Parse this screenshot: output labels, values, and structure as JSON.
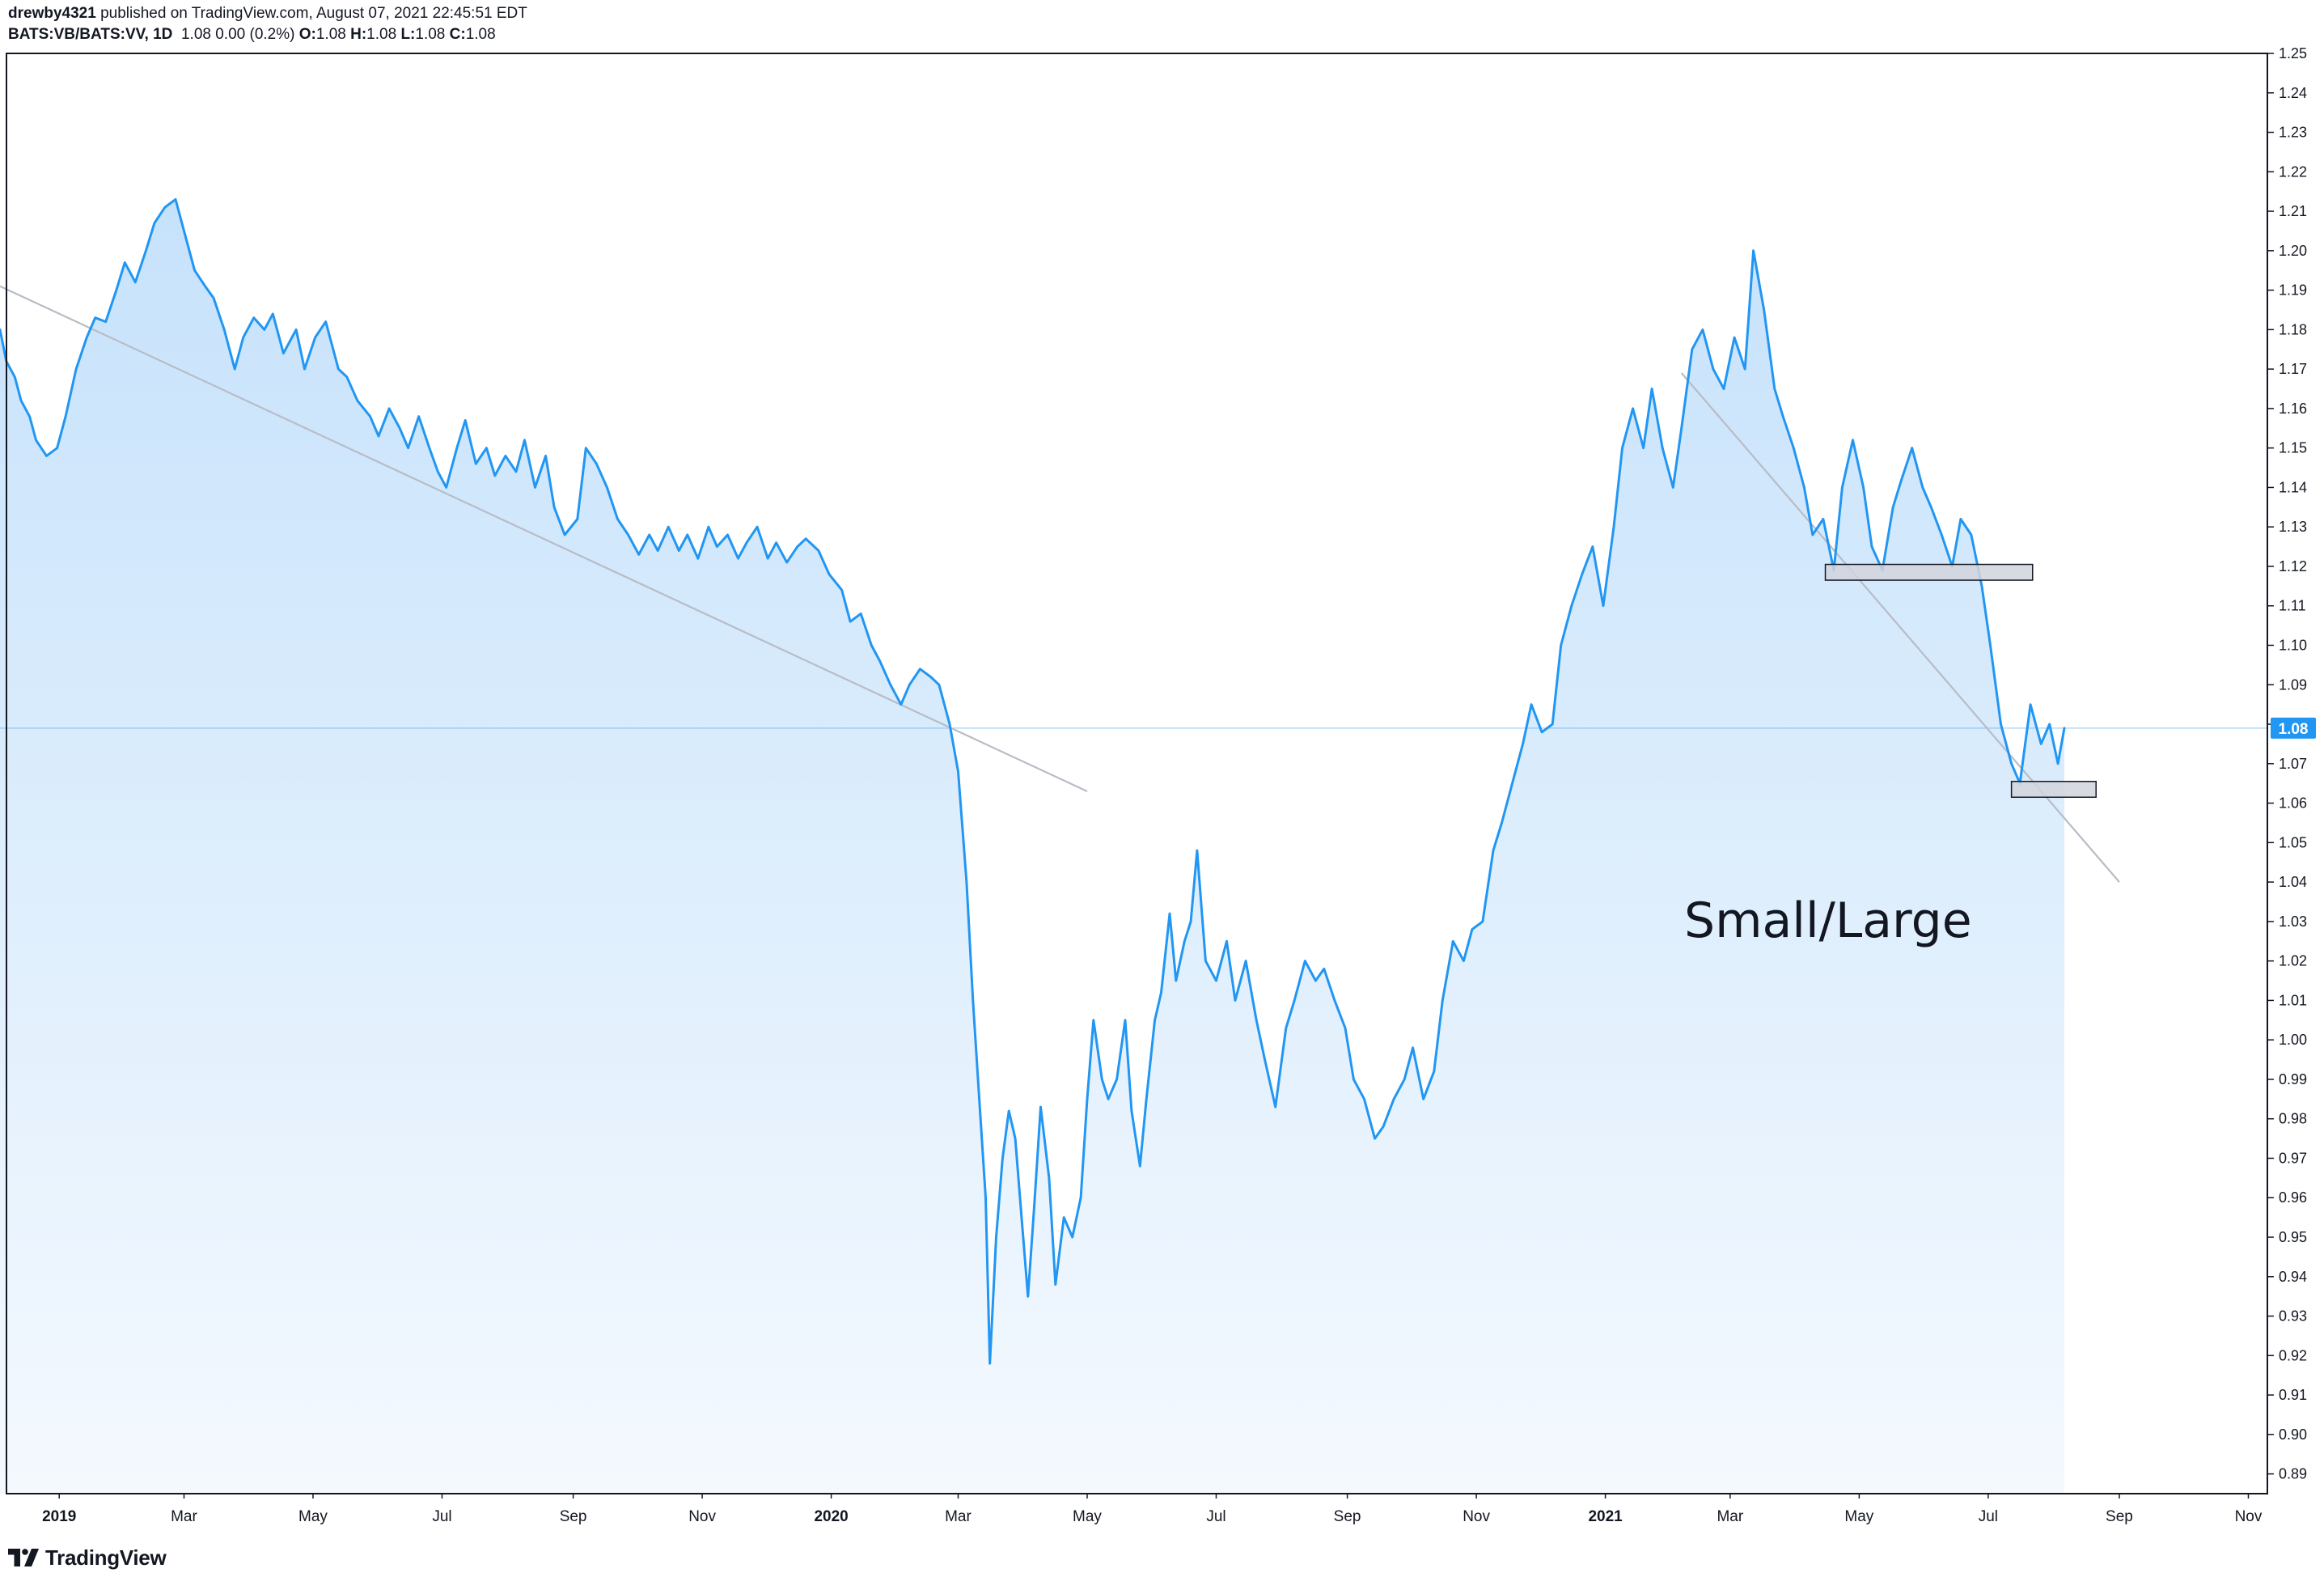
{
  "header": {
    "author": "drewby4321",
    "published_text": "published on TradingView.com, August 07, 2021 22:45:51 EDT",
    "symbol": "BATS:VB/BATS:VV, 1D",
    "quote_text": "1.08 0.00 (0.2%)",
    "o_label": "O:",
    "o_value": "1.08",
    "h_label": "H:",
    "h_value": "1.08",
    "l_label": "L:",
    "l_value": "1.08",
    "c_label": "C:",
    "c_value": "1.08"
  },
  "footer": {
    "logo_text": "TradingView",
    "logo_icon": "tradingview-logo-icon"
  },
  "colors": {
    "line": "#2196f3",
    "fill_top": "#c6e2fb",
    "fill_bottom": "#f4f9fe",
    "trendline": "#b8bcc6",
    "price_marker": "#2196f3",
    "box_fill": "#d1d4dc",
    "box_stroke": "#131722",
    "axis_text": "#131722",
    "border": "#131722"
  },
  "chart_data": {
    "type": "area",
    "title": "",
    "annotation": "Small/Large",
    "xlabel": "",
    "ylabel": "",
    "x_range": [
      "2018-12-04",
      "2021-11-10"
    ],
    "ylim": [
      0.885,
      1.25
    ],
    "grid": false,
    "legend": "none",
    "last_value_label": "1.08",
    "last_value": 1.079,
    "x_ticks": [
      {
        "label": "2019",
        "date": "2019-01-01",
        "bold": true
      },
      {
        "label": "Mar",
        "date": "2019-03-01"
      },
      {
        "label": "May",
        "date": "2019-05-01"
      },
      {
        "label": "Jul",
        "date": "2019-07-01"
      },
      {
        "label": "Sep",
        "date": "2019-09-01"
      },
      {
        "label": "Nov",
        "date": "2019-11-01"
      },
      {
        "label": "2020",
        "date": "2020-01-01",
        "bold": true
      },
      {
        "label": "Mar",
        "date": "2020-03-01"
      },
      {
        "label": "May",
        "date": "2020-05-01"
      },
      {
        "label": "Jul",
        "date": "2020-07-01"
      },
      {
        "label": "Sep",
        "date": "2020-09-01"
      },
      {
        "label": "Nov",
        "date": "2020-11-01"
      },
      {
        "label": "2021",
        "date": "2021-01-01",
        "bold": true
      },
      {
        "label": "Mar",
        "date": "2021-03-01"
      },
      {
        "label": "May",
        "date": "2021-05-01"
      },
      {
        "label": "Jul",
        "date": "2021-07-01"
      },
      {
        "label": "Sep",
        "date": "2021-09-01"
      },
      {
        "label": "Nov",
        "date": "2021-11-01"
      }
    ],
    "y_ticks": [
      "1.25",
      "1.24",
      "1.23",
      "1.22",
      "1.21",
      "1.20",
      "1.19",
      "1.18",
      "1.17",
      "1.16",
      "1.15",
      "1.14",
      "1.13",
      "1.12",
      "1.11",
      "1.10",
      "1.09",
      "1.08",
      "1.07",
      "1.06",
      "1.05",
      "1.04",
      "1.03",
      "1.02",
      "1.01",
      "1.00",
      "0.99",
      "0.98",
      "0.97",
      "0.96",
      "0.95",
      "0.94",
      "0.93",
      "0.92",
      "0.91",
      "0.90",
      "0.89"
    ],
    "series": [
      {
        "values": [
          [
            "2018-12-04",
            1.18
          ],
          [
            "2018-12-07",
            1.172
          ],
          [
            "2018-12-11",
            1.168
          ],
          [
            "2018-12-14",
            1.162
          ],
          [
            "2018-12-18",
            1.158
          ],
          [
            "2018-12-21",
            1.152
          ],
          [
            "2018-12-26",
            1.148
          ],
          [
            "2018-12-31",
            1.15
          ],
          [
            "2019-01-04",
            1.158
          ],
          [
            "2019-01-09",
            1.17
          ],
          [
            "2019-01-14",
            1.178
          ],
          [
            "2019-01-18",
            1.183
          ],
          [
            "2019-01-23",
            1.182
          ],
          [
            "2019-01-28",
            1.19
          ],
          [
            "2019-02-01",
            1.197
          ],
          [
            "2019-02-06",
            1.192
          ],
          [
            "2019-02-11",
            1.2
          ],
          [
            "2019-02-15",
            1.207
          ],
          [
            "2019-02-20",
            1.211
          ],
          [
            "2019-02-25",
            1.213
          ],
          [
            "2019-03-01",
            1.205
          ],
          [
            "2019-03-06",
            1.195
          ],
          [
            "2019-03-11",
            1.191
          ],
          [
            "2019-03-15",
            1.188
          ],
          [
            "2019-03-20",
            1.18
          ],
          [
            "2019-03-25",
            1.17
          ],
          [
            "2019-03-29",
            1.178
          ],
          [
            "2019-04-03",
            1.183
          ],
          [
            "2019-04-08",
            1.18
          ],
          [
            "2019-04-12",
            1.184
          ],
          [
            "2019-04-17",
            1.174
          ],
          [
            "2019-04-23",
            1.18
          ],
          [
            "2019-04-27",
            1.17
          ],
          [
            "2019-05-02",
            1.178
          ],
          [
            "2019-05-07",
            1.182
          ],
          [
            "2019-05-13",
            1.17
          ],
          [
            "2019-05-17",
            1.168
          ],
          [
            "2019-05-22",
            1.162
          ],
          [
            "2019-05-28",
            1.158
          ],
          [
            "2019-06-01",
            1.153
          ],
          [
            "2019-06-06",
            1.16
          ],
          [
            "2019-06-11",
            1.155
          ],
          [
            "2019-06-15",
            1.15
          ],
          [
            "2019-06-20",
            1.158
          ],
          [
            "2019-06-25",
            1.15
          ],
          [
            "2019-06-29",
            1.144
          ],
          [
            "2019-07-03",
            1.14
          ],
          [
            "2019-07-08",
            1.15
          ],
          [
            "2019-07-12",
            1.157
          ],
          [
            "2019-07-17",
            1.146
          ],
          [
            "2019-07-22",
            1.15
          ],
          [
            "2019-07-26",
            1.143
          ],
          [
            "2019-07-31",
            1.148
          ],
          [
            "2019-08-05",
            1.144
          ],
          [
            "2019-08-09",
            1.152
          ],
          [
            "2019-08-14",
            1.14
          ],
          [
            "2019-08-19",
            1.148
          ],
          [
            "2019-08-23",
            1.135
          ],
          [
            "2019-08-28",
            1.128
          ],
          [
            "2019-09-03",
            1.132
          ],
          [
            "2019-09-07",
            1.15
          ],
          [
            "2019-09-12",
            1.146
          ],
          [
            "2019-09-17",
            1.14
          ],
          [
            "2019-09-22",
            1.132
          ],
          [
            "2019-09-27",
            1.128
          ],
          [
            "2019-10-02",
            1.123
          ],
          [
            "2019-10-07",
            1.128
          ],
          [
            "2019-10-11",
            1.124
          ],
          [
            "2019-10-16",
            1.13
          ],
          [
            "2019-10-21",
            1.124
          ],
          [
            "2019-10-25",
            1.128
          ],
          [
            "2019-10-30",
            1.122
          ],
          [
            "2019-11-04",
            1.13
          ],
          [
            "2019-11-08",
            1.125
          ],
          [
            "2019-11-13",
            1.128
          ],
          [
            "2019-11-18",
            1.122
          ],
          [
            "2019-11-22",
            1.126
          ],
          [
            "2019-11-27",
            1.13
          ],
          [
            "2019-12-02",
            1.122
          ],
          [
            "2019-12-06",
            1.126
          ],
          [
            "2019-12-11",
            1.121
          ],
          [
            "2019-12-16",
            1.125
          ],
          [
            "2019-12-20",
            1.127
          ],
          [
            "2019-12-26",
            1.124
          ],
          [
            "2019-12-31",
            1.118
          ],
          [
            "2020-01-06",
            1.114
          ],
          [
            "2020-01-10",
            1.106
          ],
          [
            "2020-01-15",
            1.108
          ],
          [
            "2020-01-20",
            1.1
          ],
          [
            "2020-01-24",
            1.096
          ],
          [
            "2020-01-29",
            1.09
          ],
          [
            "2020-02-03",
            1.085
          ],
          [
            "2020-02-07",
            1.09
          ],
          [
            "2020-02-12",
            1.094
          ],
          [
            "2020-02-17",
            1.092
          ],
          [
            "2020-02-21",
            1.09
          ],
          [
            "2020-02-26",
            1.08
          ],
          [
            "2020-03-01",
            1.068
          ],
          [
            "2020-03-05",
            1.04
          ],
          [
            "2020-03-08",
            1.01
          ],
          [
            "2020-03-11",
            0.985
          ],
          [
            "2020-03-14",
            0.96
          ],
          [
            "2020-03-16",
            0.918
          ],
          [
            "2020-03-19",
            0.95
          ],
          [
            "2020-03-22",
            0.97
          ],
          [
            "2020-03-25",
            0.982
          ],
          [
            "2020-03-28",
            0.975
          ],
          [
            "2020-03-31",
            0.955
          ],
          [
            "2020-04-03",
            0.935
          ],
          [
            "2020-04-06",
            0.958
          ],
          [
            "2020-04-09",
            0.983
          ],
          [
            "2020-04-13",
            0.965
          ],
          [
            "2020-04-16",
            0.938
          ],
          [
            "2020-04-20",
            0.955
          ],
          [
            "2020-04-24",
            0.95
          ],
          [
            "2020-04-28",
            0.96
          ],
          [
            "2020-05-01",
            0.985
          ],
          [
            "2020-05-04",
            1.005
          ],
          [
            "2020-05-08",
            0.99
          ],
          [
            "2020-05-11",
            0.985
          ],
          [
            "2020-05-15",
            0.99
          ],
          [
            "2020-05-19",
            1.005
          ],
          [
            "2020-05-22",
            0.982
          ],
          [
            "2020-05-26",
            0.968
          ],
          [
            "2020-05-29",
            0.985
          ],
          [
            "2020-06-02",
            1.005
          ],
          [
            "2020-06-05",
            1.012
          ],
          [
            "2020-06-09",
            1.032
          ],
          [
            "2020-06-12",
            1.015
          ],
          [
            "2020-06-16",
            1.025
          ],
          [
            "2020-06-19",
            1.03
          ],
          [
            "2020-06-22",
            1.048
          ],
          [
            "2020-06-26",
            1.02
          ],
          [
            "2020-07-01",
            1.015
          ],
          [
            "2020-07-06",
            1.025
          ],
          [
            "2020-07-10",
            1.01
          ],
          [
            "2020-07-15",
            1.02
          ],
          [
            "2020-07-20",
            1.005
          ],
          [
            "2020-07-24",
            0.995
          ],
          [
            "2020-07-29",
            0.983
          ],
          [
            "2020-08-03",
            1.003
          ],
          [
            "2020-08-07",
            1.01
          ],
          [
            "2020-08-12",
            1.02
          ],
          [
            "2020-08-17",
            1.015
          ],
          [
            "2020-08-21",
            1.018
          ],
          [
            "2020-08-26",
            1.01
          ],
          [
            "2020-08-31",
            1.003
          ],
          [
            "2020-09-04",
            0.99
          ],
          [
            "2020-09-09",
            0.985
          ],
          [
            "2020-09-14",
            0.975
          ],
          [
            "2020-09-18",
            0.978
          ],
          [
            "2020-09-23",
            0.985
          ],
          [
            "2020-09-28",
            0.99
          ],
          [
            "2020-10-02",
            0.998
          ],
          [
            "2020-10-07",
            0.985
          ],
          [
            "2020-10-12",
            0.992
          ],
          [
            "2020-10-16",
            1.01
          ],
          [
            "2020-10-21",
            1.025
          ],
          [
            "2020-10-26",
            1.02
          ],
          [
            "2020-10-30",
            1.028
          ],
          [
            "2020-11-04",
            1.03
          ],
          [
            "2020-11-09",
            1.048
          ],
          [
            "2020-11-13",
            1.055
          ],
          [
            "2020-11-18",
            1.065
          ],
          [
            "2020-11-23",
            1.075
          ],
          [
            "2020-11-27",
            1.085
          ],
          [
            "2020-12-02",
            1.078
          ],
          [
            "2020-12-07",
            1.08
          ],
          [
            "2020-12-11",
            1.1
          ],
          [
            "2020-12-16",
            1.11
          ],
          [
            "2020-12-21",
            1.118
          ],
          [
            "2020-12-26",
            1.125
          ],
          [
            "2020-12-31",
            1.11
          ],
          [
            "2021-01-05",
            1.13
          ],
          [
            "2021-01-09",
            1.15
          ],
          [
            "2021-01-14",
            1.16
          ],
          [
            "2021-01-19",
            1.15
          ],
          [
            "2021-01-23",
            1.165
          ],
          [
            "2021-01-28",
            1.15
          ],
          [
            "2021-02-02",
            1.14
          ],
          [
            "2021-02-06",
            1.155
          ],
          [
            "2021-02-11",
            1.175
          ],
          [
            "2021-02-16",
            1.18
          ],
          [
            "2021-02-21",
            1.17
          ],
          [
            "2021-02-26",
            1.165
          ],
          [
            "2021-03-03",
            1.178
          ],
          [
            "2021-03-08",
            1.17
          ],
          [
            "2021-03-12",
            1.2
          ],
          [
            "2021-03-17",
            1.185
          ],
          [
            "2021-03-22",
            1.165
          ],
          [
            "2021-03-26",
            1.158
          ],
          [
            "2021-03-31",
            1.15
          ],
          [
            "2021-04-05",
            1.14
          ],
          [
            "2021-04-09",
            1.128
          ],
          [
            "2021-04-14",
            1.132
          ],
          [
            "2021-04-19",
            1.119
          ],
          [
            "2021-04-23",
            1.14
          ],
          [
            "2021-04-28",
            1.152
          ],
          [
            "2021-05-03",
            1.14
          ],
          [
            "2021-05-07",
            1.125
          ],
          [
            "2021-05-12",
            1.119
          ],
          [
            "2021-05-17",
            1.135
          ],
          [
            "2021-05-21",
            1.142
          ],
          [
            "2021-05-26",
            1.15
          ],
          [
            "2021-05-31",
            1.14
          ],
          [
            "2021-06-04",
            1.135
          ],
          [
            "2021-06-09",
            1.128
          ],
          [
            "2021-06-14",
            1.12
          ],
          [
            "2021-06-18",
            1.132
          ],
          [
            "2021-06-23",
            1.128
          ],
          [
            "2021-06-28",
            1.115
          ],
          [
            "2021-07-02",
            1.1
          ],
          [
            "2021-07-07",
            1.08
          ],
          [
            "2021-07-12",
            1.07
          ],
          [
            "2021-07-16",
            1.065
          ],
          [
            "2021-07-21",
            1.085
          ],
          [
            "2021-07-26",
            1.075
          ],
          [
            "2021-07-30",
            1.08
          ],
          [
            "2021-08-03",
            1.07
          ],
          [
            "2021-08-06",
            1.079
          ]
        ]
      }
    ],
    "trendlines": [
      {
        "from": [
          "2018-12-04",
          1.191
        ],
        "to": [
          "2020-05-01",
          1.063
        ]
      },
      {
        "from": [
          "2021-02-06",
          1.169
        ],
        "to": [
          "2021-09-01",
          1.04
        ]
      }
    ],
    "boxes": [
      {
        "from": [
          "2021-04-15",
          1.1165
        ],
        "to": [
          "2021-07-22",
          1.1205
        ]
      },
      {
        "from": [
          "2021-07-12",
          1.0615
        ],
        "to": [
          "2021-08-21",
          1.0655
        ]
      }
    ],
    "price_line": 1.079
  }
}
